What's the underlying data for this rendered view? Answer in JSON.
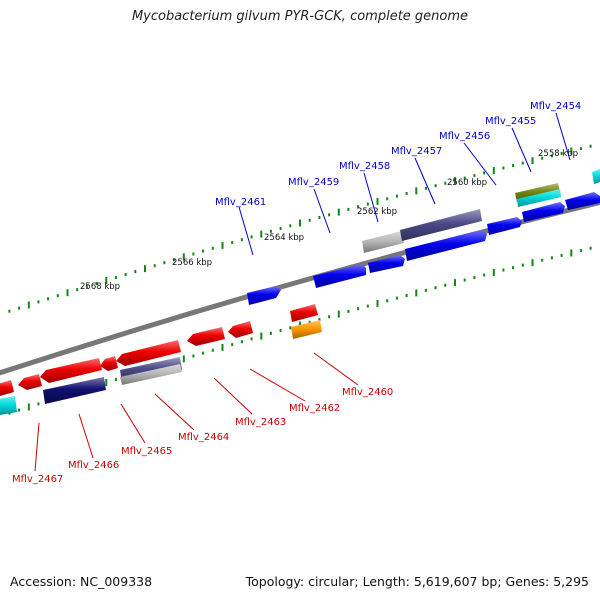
{
  "title": "Mycobacterium gilvum PYR-GCK, complete genome",
  "footer": {
    "accession": "Accession: NC_009338",
    "summary": "Topology: circular; Length: 5,619,607 bp; Genes: 5,295"
  },
  "colors": {
    "forward_gene": "#0000ee",
    "reverse_gene": "#ee0000",
    "orange_gene": "#ff9900",
    "cyan_gene": "#00dddd",
    "olive_gene": "#778811",
    "navy_gene": "#101070",
    "slate_gene": "#4a4a88",
    "grey_gene": "#b8b8b8",
    "backbone": "#777777",
    "ticks": "#118811",
    "forward_label": "#0000cc",
    "reverse_label": "#cc0000"
  },
  "scale_labels": [
    "2558 kbp",
    "2560 kbp",
    "2562 kbp",
    "2564 kbp",
    "2566 kbp",
    "2568 kbp"
  ],
  "forward_gene_labels": [
    "Mflv_2454",
    "Mflv_2455",
    "Mflv_2456",
    "Mflv_2457",
    "Mflv_2458",
    "Mflv_2459",
    "Mflv_2461"
  ],
  "reverse_gene_labels": [
    "Mflv_2460",
    "Mflv_2462",
    "Mflv_2463",
    "Mflv_2464",
    "Mflv_2465",
    "Mflv_2466",
    "Mflv_2467"
  ]
}
